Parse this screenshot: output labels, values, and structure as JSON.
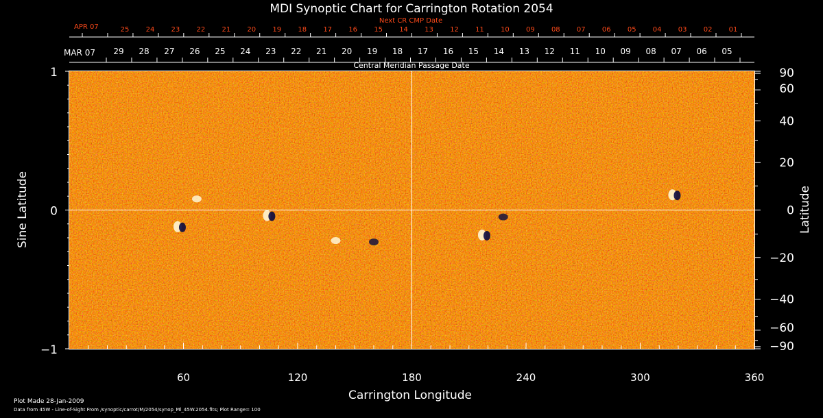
{
  "chart_data": {
    "type": "heatmap",
    "title": "MDI Synoptic Chart for Carrington Rotation 2054",
    "xlabel": "Carrington Longitude",
    "ylabel_left": "Sine Latitude",
    "ylabel_right": "Latitude",
    "xlim": [
      0,
      360
    ],
    "ylim": [
      -1,
      1
    ],
    "x_ticks": [
      60,
      120,
      180,
      240,
      300,
      360
    ],
    "y_ticks_left": [
      -1,
      0,
      1
    ],
    "y_ticks_right": [
      90,
      60,
      40,
      20,
      0,
      -20,
      -40,
      -60,
      -90
    ],
    "top_axis_title": "Central Meridian Passage Date",
    "top_axis_month": "MAR 07",
    "top_axis_days": [
      "29",
      "28",
      "27",
      "26",
      "25",
      "24",
      "23",
      "22",
      "21",
      "20",
      "19",
      "18",
      "17",
      "16",
      "15",
      "14",
      "13",
      "12",
      "11",
      "10",
      "09",
      "08",
      "07",
      "06",
      "05"
    ],
    "next_cr_title": "Next CR CMP Date",
    "next_cr_month": "APR 07",
    "next_cr_days": [
      "25",
      "24",
      "23",
      "22",
      "21",
      "20",
      "19",
      "18",
      "17",
      "16",
      "15",
      "14",
      "13",
      "12",
      "11",
      "10",
      "09",
      "08",
      "07",
      "06",
      "05",
      "04",
      "03",
      "02",
      "01"
    ],
    "footer_plot_made": "Plot Made 28-Jan-2009",
    "footer_source": "Data from 45W - Line-of-Sight From /synoptic/carrot/M/2054/synop_Ml_45W.2054.fits; Plot Range=  100",
    "plot_range": 100,
    "colormap": [
      "#00003a",
      "#b42200",
      "#ff6a10",
      "#ffffe0"
    ],
    "active_regions": [
      {
        "lon": 58,
        "sinlat": -0.12,
        "polarity": "mixed"
      },
      {
        "lon": 67,
        "sinlat": 0.08,
        "polarity": "positive"
      },
      {
        "lon": 105,
        "sinlat": -0.04,
        "polarity": "mixed"
      },
      {
        "lon": 140,
        "sinlat": -0.22,
        "polarity": "positive"
      },
      {
        "lon": 160,
        "sinlat": -0.23,
        "polarity": "negative"
      },
      {
        "lon": 228,
        "sinlat": -0.05,
        "polarity": "negative"
      },
      {
        "lon": 218,
        "sinlat": -0.18,
        "polarity": "mixed"
      },
      {
        "lon": 318,
        "sinlat": 0.11,
        "polarity": "mixed"
      }
    ]
  }
}
